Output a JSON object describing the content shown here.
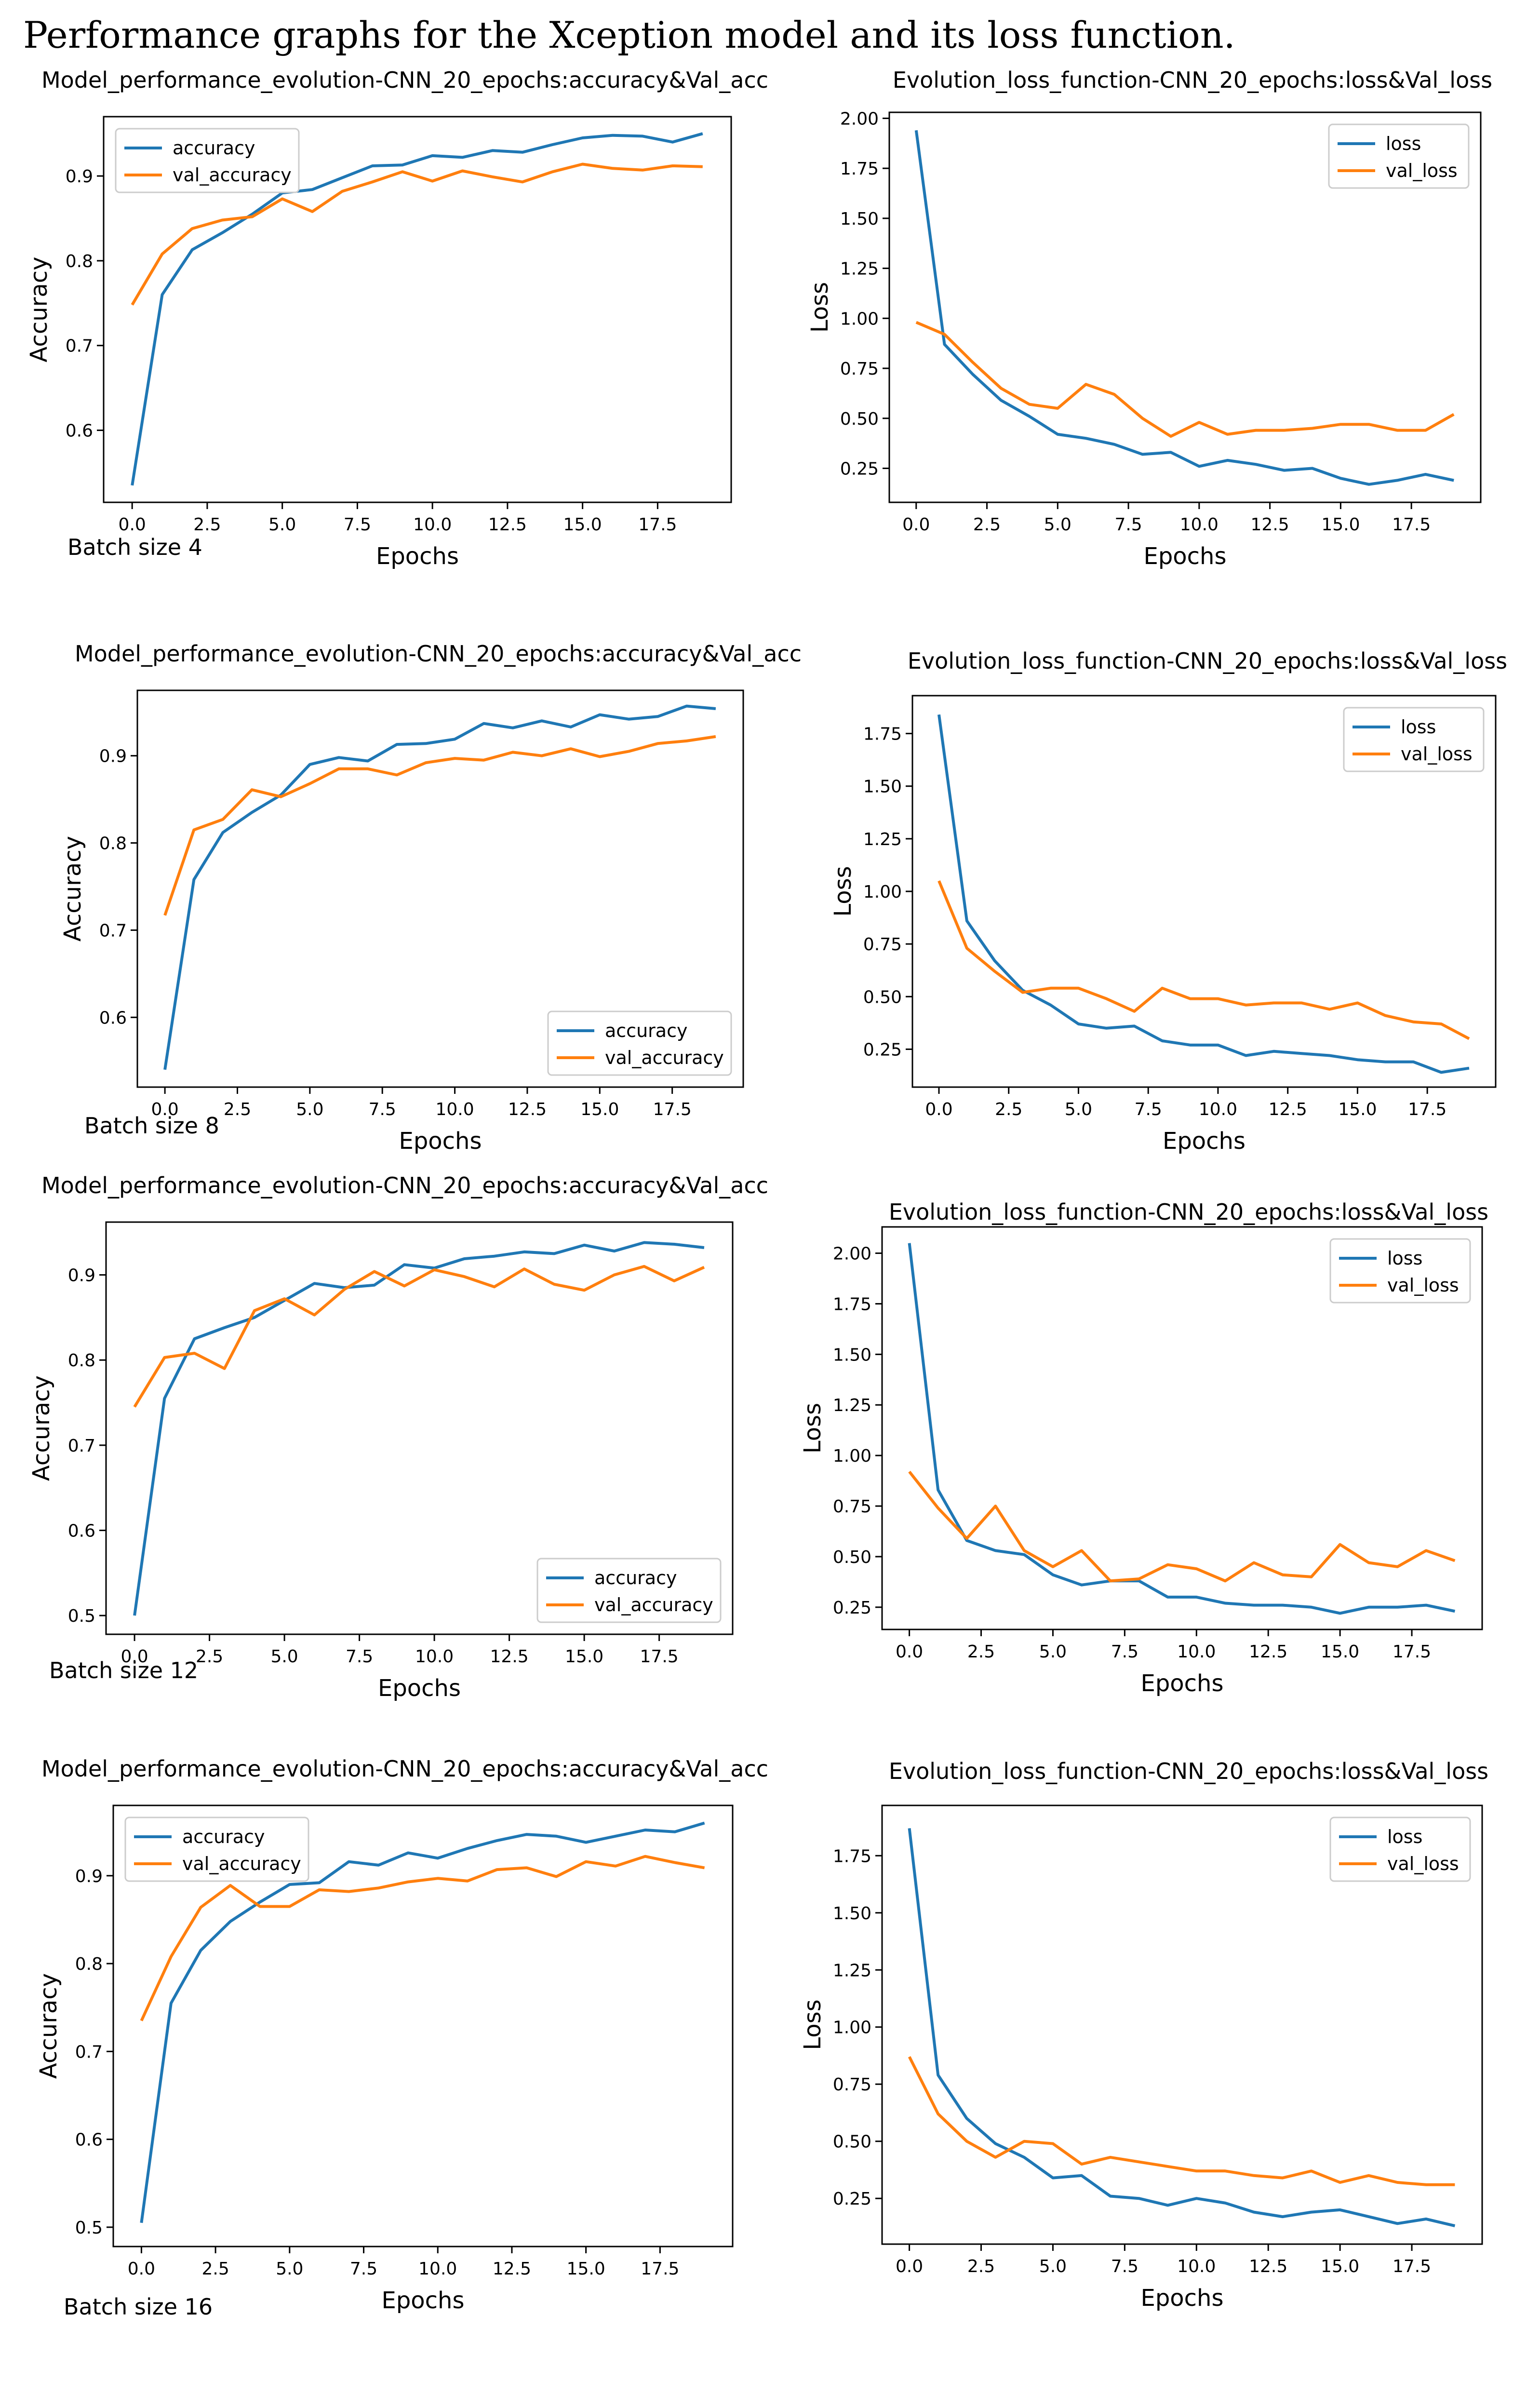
{
  "page": {
    "title": "Performance graphs for the Xception model and its loss function."
  },
  "colors": {
    "train": "#1f77b4",
    "val": "#ff7f0e",
    "axis": "#000000",
    "legend_border": "#cccccc"
  },
  "batch_labels": [
    "Batch size 4",
    "Batch size 8",
    "Batch size 12",
    "Batch size 16"
  ],
  "chart_data": [
    {
      "type": "line",
      "batch": "Batch size 4",
      "kind": "accuracy",
      "title": "Model_performance_evolution-CNN_20_epochs:accuracy&Val_acc",
      "xlabel": "Epochs",
      "ylabel": "Accuracy",
      "x": [
        0,
        1,
        2,
        3,
        4,
        5,
        6,
        7,
        8,
        9,
        10,
        11,
        12,
        13,
        14,
        15,
        16,
        17,
        18,
        19
      ],
      "xlim": [
        -0.95,
        19.95
      ],
      "ylim": [
        0.515,
        0.97
      ],
      "xticks": [
        0,
        2.5,
        5,
        7.5,
        10,
        12.5,
        15,
        17.5
      ],
      "xtick_labels": [
        "0.0",
        "2.5",
        "5.0",
        "7.5",
        "10.0",
        "12.5",
        "15.0",
        "17.5"
      ],
      "yticks": [
        0.6,
        0.7,
        0.8,
        0.9
      ],
      "ytick_labels": [
        "0.6",
        "0.7",
        "0.8",
        "0.9"
      ],
      "legend": "upper left",
      "series": [
        {
          "name": "accuracy",
          "role": "train",
          "values": [
            0.535,
            0.76,
            0.813,
            0.833,
            0.855,
            0.88,
            0.884,
            0.898,
            0.912,
            0.913,
            0.924,
            0.922,
            0.93,
            0.928,
            0.937,
            0.945,
            0.948,
            0.947,
            0.94,
            0.95
          ]
        },
        {
          "name": "val_accuracy",
          "role": "val",
          "values": [
            0.748,
            0.808,
            0.838,
            0.848,
            0.852,
            0.873,
            0.858,
            0.882,
            0.893,
            0.905,
            0.894,
            0.906,
            0.899,
            0.893,
            0.905,
            0.914,
            0.909,
            0.907,
            0.912,
            0.911
          ]
        }
      ]
    },
    {
      "type": "line",
      "batch": "Batch size 4",
      "kind": "loss",
      "title": "Evolution_loss_function-CNN_20_epochs:loss&Val_loss",
      "xlabel": "Epochs",
      "ylabel": "Loss",
      "x": [
        0,
        1,
        2,
        3,
        4,
        5,
        6,
        7,
        8,
        9,
        10,
        11,
        12,
        13,
        14,
        15,
        16,
        17,
        18,
        19
      ],
      "xlim": [
        -0.95,
        19.95
      ],
      "ylim": [
        0.08,
        2.03
      ],
      "xticks": [
        0,
        2.5,
        5,
        7.5,
        10,
        12.5,
        15,
        17.5
      ],
      "xtick_labels": [
        "0.0",
        "2.5",
        "5.0",
        "7.5",
        "10.0",
        "12.5",
        "15.0",
        "17.5"
      ],
      "yticks": [
        0.25,
        0.5,
        0.75,
        1.0,
        1.25,
        1.5,
        1.75,
        2.0
      ],
      "ytick_labels": [
        "0.25",
        "0.50",
        "0.75",
        "1.00",
        "1.25",
        "1.50",
        "1.75",
        "2.00"
      ],
      "legend": "upper right",
      "series": [
        {
          "name": "loss",
          "role": "train",
          "values": [
            1.94,
            0.87,
            0.72,
            0.59,
            0.51,
            0.42,
            0.4,
            0.37,
            0.32,
            0.33,
            0.26,
            0.29,
            0.27,
            0.24,
            0.25,
            0.2,
            0.17,
            0.19,
            0.22,
            0.19
          ]
        },
        {
          "name": "val_loss",
          "role": "val",
          "values": [
            0.98,
            0.92,
            0.78,
            0.65,
            0.57,
            0.55,
            0.67,
            0.62,
            0.5,
            0.41,
            0.48,
            0.42,
            0.44,
            0.44,
            0.45,
            0.47,
            0.47,
            0.44,
            0.44,
            0.52
          ]
        }
      ]
    },
    {
      "type": "line",
      "batch": "Batch size 8",
      "kind": "accuracy",
      "title": "Model_performance_evolution-CNN_20_epochs:accuracy&Val_acc",
      "xlabel": "Epochs",
      "ylabel": "Accuracy",
      "x": [
        0,
        1,
        2,
        3,
        4,
        5,
        6,
        7,
        8,
        9,
        10,
        11,
        12,
        13,
        14,
        15,
        16,
        17,
        18,
        19
      ],
      "xlim": [
        -0.95,
        19.95
      ],
      "ylim": [
        0.52,
        0.975
      ],
      "xticks": [
        0,
        2.5,
        5,
        7.5,
        10,
        12.5,
        15,
        17.5
      ],
      "xtick_labels": [
        "0.0",
        "2.5",
        "5.0",
        "7.5",
        "10.0",
        "12.5",
        "15.0",
        "17.5"
      ],
      "yticks": [
        0.6,
        0.7,
        0.8,
        0.9
      ],
      "ytick_labels": [
        "0.6",
        "0.7",
        "0.8",
        "0.9"
      ],
      "legend": "lower right",
      "series": [
        {
          "name": "accuracy",
          "role": "train",
          "values": [
            0.54,
            0.758,
            0.812,
            0.835,
            0.855,
            0.89,
            0.898,
            0.894,
            0.913,
            0.914,
            0.919,
            0.937,
            0.932,
            0.94,
            0.933,
            0.947,
            0.942,
            0.945,
            0.957,
            0.954
          ]
        },
        {
          "name": "val_accuracy",
          "role": "val",
          "values": [
            0.717,
            0.815,
            0.827,
            0.861,
            0.853,
            0.868,
            0.885,
            0.885,
            0.878,
            0.892,
            0.897,
            0.895,
            0.904,
            0.9,
            0.908,
            0.899,
            0.905,
            0.914,
            0.917,
            0.922
          ]
        }
      ]
    },
    {
      "type": "line",
      "batch": "Batch size 8",
      "kind": "loss",
      "title": "Evolution_loss_function-CNN_20_epochs:loss&Val_loss",
      "xlabel": "Epochs",
      "ylabel": "Loss",
      "x": [
        0,
        1,
        2,
        3,
        4,
        5,
        6,
        7,
        8,
        9,
        10,
        11,
        12,
        13,
        14,
        15,
        16,
        17,
        18,
        19
      ],
      "xlim": [
        -0.95,
        19.95
      ],
      "ylim": [
        0.07,
        1.93
      ],
      "xticks": [
        0,
        2.5,
        5,
        7.5,
        10,
        12.5,
        15,
        17.5
      ],
      "xtick_labels": [
        "0.0",
        "2.5",
        "5.0",
        "7.5",
        "10.0",
        "12.5",
        "15.0",
        "17.5"
      ],
      "yticks": [
        0.25,
        0.5,
        0.75,
        1.0,
        1.25,
        1.5,
        1.75
      ],
      "ytick_labels": [
        "0.25",
        "0.50",
        "0.75",
        "1.00",
        "1.25",
        "1.50",
        "1.75"
      ],
      "legend": "upper right",
      "series": [
        {
          "name": "loss",
          "role": "train",
          "values": [
            1.84,
            0.86,
            0.67,
            0.53,
            0.46,
            0.37,
            0.35,
            0.36,
            0.29,
            0.27,
            0.27,
            0.22,
            0.24,
            0.23,
            0.22,
            0.2,
            0.19,
            0.19,
            0.14,
            0.16
          ]
        },
        {
          "name": "val_loss",
          "role": "val",
          "values": [
            1.05,
            0.73,
            0.62,
            0.52,
            0.54,
            0.54,
            0.49,
            0.43,
            0.54,
            0.49,
            0.49,
            0.46,
            0.47,
            0.47,
            0.44,
            0.47,
            0.41,
            0.38,
            0.37,
            0.3
          ]
        }
      ]
    },
    {
      "type": "line",
      "batch": "Batch size 12",
      "kind": "accuracy",
      "title": "Model_performance_evolution-CNN_20_epochs:accuracy&Val_acc",
      "xlabel": "Epochs",
      "ylabel": "Accuracy",
      "x": [
        0,
        1,
        2,
        3,
        4,
        5,
        6,
        7,
        8,
        9,
        10,
        11,
        12,
        13,
        14,
        15,
        16,
        17,
        18,
        19
      ],
      "xlim": [
        -0.95,
        19.95
      ],
      "ylim": [
        0.478,
        0.962
      ],
      "xticks": [
        0,
        2.5,
        5,
        7.5,
        10,
        12.5,
        15,
        17.5
      ],
      "xtick_labels": [
        "0.0",
        "2.5",
        "5.0",
        "7.5",
        "10.0",
        "12.5",
        "15.0",
        "17.5"
      ],
      "yticks": [
        0.5,
        0.6,
        0.7,
        0.8,
        0.9
      ],
      "ytick_labels": [
        "0.5",
        "0.6",
        "0.7",
        "0.8",
        "0.9"
      ],
      "legend": "lower right",
      "series": [
        {
          "name": "accuracy",
          "role": "train",
          "values": [
            0.5,
            0.755,
            0.825,
            0.838,
            0.85,
            0.87,
            0.89,
            0.885,
            0.888,
            0.912,
            0.908,
            0.919,
            0.922,
            0.927,
            0.925,
            0.935,
            0.928,
            0.938,
            0.936,
            0.932
          ]
        },
        {
          "name": "val_accuracy",
          "role": "val",
          "values": [
            0.745,
            0.803,
            0.808,
            0.79,
            0.858,
            0.872,
            0.853,
            0.883,
            0.904,
            0.887,
            0.906,
            0.898,
            0.886,
            0.907,
            0.889,
            0.882,
            0.9,
            0.91,
            0.893,
            0.909
          ]
        }
      ]
    },
    {
      "type": "line",
      "batch": "Batch size 12",
      "kind": "loss",
      "title": "Evolution_loss_function-CNN_20_epochs:loss&Val_loss",
      "xlabel": "Epochs",
      "ylabel": "Loss",
      "x": [
        0,
        1,
        2,
        3,
        4,
        5,
        6,
        7,
        8,
        9,
        10,
        11,
        12,
        13,
        14,
        15,
        16,
        17,
        18,
        19
      ],
      "xlim": [
        -0.95,
        19.95
      ],
      "ylim": [
        0.14,
        2.13
      ],
      "xticks": [
        0,
        2.5,
        5,
        7.5,
        10,
        12.5,
        15,
        17.5
      ],
      "xtick_labels": [
        "0.0",
        "2.5",
        "5.0",
        "7.5",
        "10.0",
        "12.5",
        "15.0",
        "17.5"
      ],
      "yticks": [
        0.25,
        0.5,
        0.75,
        1.0,
        1.25,
        1.5,
        1.75,
        2.0
      ],
      "ytick_labels": [
        "0.25",
        "0.50",
        "0.75",
        "1.00",
        "1.25",
        "1.50",
        "1.75",
        "2.00"
      ],
      "legend": "upper right",
      "series": [
        {
          "name": "loss",
          "role": "train",
          "values": [
            2.05,
            0.83,
            0.58,
            0.53,
            0.51,
            0.41,
            0.36,
            0.38,
            0.38,
            0.3,
            0.3,
            0.27,
            0.26,
            0.26,
            0.25,
            0.22,
            0.25,
            0.25,
            0.26,
            0.23
          ]
        },
        {
          "name": "val_loss",
          "role": "val",
          "values": [
            0.92,
            0.74,
            0.59,
            0.75,
            0.53,
            0.45,
            0.53,
            0.38,
            0.39,
            0.46,
            0.44,
            0.38,
            0.47,
            0.41,
            0.4,
            0.56,
            0.47,
            0.45,
            0.53,
            0.48
          ]
        }
      ]
    },
    {
      "type": "line",
      "batch": "Batch size 16",
      "kind": "accuracy",
      "title": "Model_performance_evolution-CNN_20_epochs:accuracy&Val_acc",
      "xlabel": "Epochs",
      "ylabel": "Accuracy",
      "x": [
        0,
        1,
        2,
        3,
        4,
        5,
        6,
        7,
        8,
        9,
        10,
        11,
        12,
        13,
        14,
        15,
        16,
        17,
        18,
        19
      ],
      "xlim": [
        -0.95,
        19.95
      ],
      "ylim": [
        0.478,
        0.98
      ],
      "xticks": [
        0,
        2.5,
        5,
        7.5,
        10,
        12.5,
        15,
        17.5
      ],
      "xtick_labels": [
        "0.0",
        "2.5",
        "5.0",
        "7.5",
        "10.0",
        "12.5",
        "15.0",
        "17.5"
      ],
      "yticks": [
        0.5,
        0.6,
        0.7,
        0.8,
        0.9
      ],
      "ytick_labels": [
        "0.5",
        "0.6",
        "0.7",
        "0.8",
        "0.9"
      ],
      "legend": "upper left",
      "series": [
        {
          "name": "accuracy",
          "role": "train",
          "values": [
            0.505,
            0.755,
            0.815,
            0.848,
            0.87,
            0.89,
            0.892,
            0.916,
            0.912,
            0.926,
            0.92,
            0.931,
            0.94,
            0.947,
            0.945,
            0.938,
            0.945,
            0.952,
            0.95,
            0.96
          ]
        },
        {
          "name": "val_accuracy",
          "role": "val",
          "values": [
            0.735,
            0.808,
            0.864,
            0.889,
            0.865,
            0.865,
            0.884,
            0.882,
            0.886,
            0.893,
            0.897,
            0.894,
            0.907,
            0.909,
            0.899,
            0.916,
            0.911,
            0.922,
            0.915,
            0.909
          ]
        }
      ]
    },
    {
      "type": "line",
      "batch": "Batch size 16",
      "kind": "loss",
      "title": "Evolution_loss_function-CNN_20_epochs:loss&Val_loss",
      "xlabel": "Epochs",
      "ylabel": "Loss",
      "x": [
        0,
        1,
        2,
        3,
        4,
        5,
        6,
        7,
        8,
        9,
        10,
        11,
        12,
        13,
        14,
        15,
        16,
        17,
        18,
        19
      ],
      "xlim": [
        -0.95,
        19.95
      ],
      "ylim": [
        0.05,
        1.97
      ],
      "xticks": [
        0,
        2.5,
        5,
        7.5,
        10,
        12.5,
        15,
        17.5
      ],
      "xtick_labels": [
        "0.0",
        "2.5",
        "5.0",
        "7.5",
        "10.0",
        "12.5",
        "15.0",
        "17.5"
      ],
      "yticks": [
        0.25,
        0.5,
        0.75,
        1.0,
        1.25,
        1.5,
        1.75
      ],
      "ytick_labels": [
        "0.25",
        "0.50",
        "0.75",
        "1.00",
        "1.25",
        "1.50",
        "1.75"
      ],
      "legend": "upper right",
      "series": [
        {
          "name": "loss",
          "role": "train",
          "values": [
            1.87,
            0.79,
            0.6,
            0.49,
            0.43,
            0.34,
            0.35,
            0.26,
            0.25,
            0.22,
            0.25,
            0.23,
            0.19,
            0.17,
            0.19,
            0.2,
            0.17,
            0.14,
            0.16,
            0.13
          ]
        },
        {
          "name": "val_loss",
          "role": "val",
          "values": [
            0.87,
            0.62,
            0.5,
            0.43,
            0.5,
            0.49,
            0.4,
            0.43,
            0.41,
            0.39,
            0.37,
            0.37,
            0.35,
            0.34,
            0.37,
            0.32,
            0.35,
            0.32,
            0.31,
            0.31
          ]
        }
      ]
    }
  ]
}
